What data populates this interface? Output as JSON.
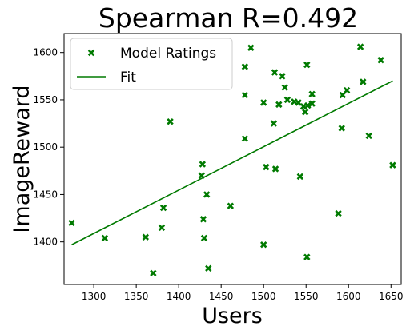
{
  "chart_data": {
    "type": "scatter",
    "title": "Spearman R=0.492",
    "xlabel": "Users",
    "ylabel": "ImageReward",
    "xlim": [
      1265,
      1662
    ],
    "ylim": [
      1355,
      1620
    ],
    "xticks": [
      1300,
      1350,
      1400,
      1450,
      1500,
      1550,
      1600,
      1650
    ],
    "yticks": [
      1400,
      1450,
      1500,
      1550,
      1600
    ],
    "grid": false,
    "legend_position": "top-left",
    "colors": {
      "series": "#007a00"
    },
    "series": [
      {
        "name": "Model Ratings",
        "kind": "scatter",
        "marker": "X",
        "points": [
          [
            1274,
            1420
          ],
          [
            1313,
            1404
          ],
          [
            1361,
            1405
          ],
          [
            1370,
            1367
          ],
          [
            1380,
            1415
          ],
          [
            1382,
            1436
          ],
          [
            1390,
            1527
          ],
          [
            1427,
            1470
          ],
          [
            1428,
            1482
          ],
          [
            1429,
            1424
          ],
          [
            1430,
            1404
          ],
          [
            1433,
            1450
          ],
          [
            1435,
            1372
          ],
          [
            1461,
            1438
          ],
          [
            1478,
            1509
          ],
          [
            1478,
            1555
          ],
          [
            1478,
            1585
          ],
          [
            1485,
            1605
          ],
          [
            1500,
            1547
          ],
          [
            1500,
            1397
          ],
          [
            1503,
            1479
          ],
          [
            1512,
            1525
          ],
          [
            1514,
            1477
          ],
          [
            1513,
            1579
          ],
          [
            1518,
            1545
          ],
          [
            1522,
            1575
          ],
          [
            1525,
            1563
          ],
          [
            1528,
            1550
          ],
          [
            1536,
            1548
          ],
          [
            1541,
            1547
          ],
          [
            1543,
            1469
          ],
          [
            1547,
            1543
          ],
          [
            1549,
            1537
          ],
          [
            1551,
            1384
          ],
          [
            1551,
            1587
          ],
          [
            1552,
            1544
          ],
          [
            1557,
            1546
          ],
          [
            1557,
            1556
          ],
          [
            1588,
            1430
          ],
          [
            1592,
            1520
          ],
          [
            1593,
            1555
          ],
          [
            1598,
            1560
          ],
          [
            1614,
            1606
          ],
          [
            1617,
            1569
          ],
          [
            1624,
            1512
          ],
          [
            1638,
            1592
          ],
          [
            1652,
            1481
          ]
        ]
      },
      {
        "name": "Fit",
        "kind": "line",
        "points": [
          [
            1274,
            1397
          ],
          [
            1652,
            1570
          ]
        ]
      }
    ]
  }
}
